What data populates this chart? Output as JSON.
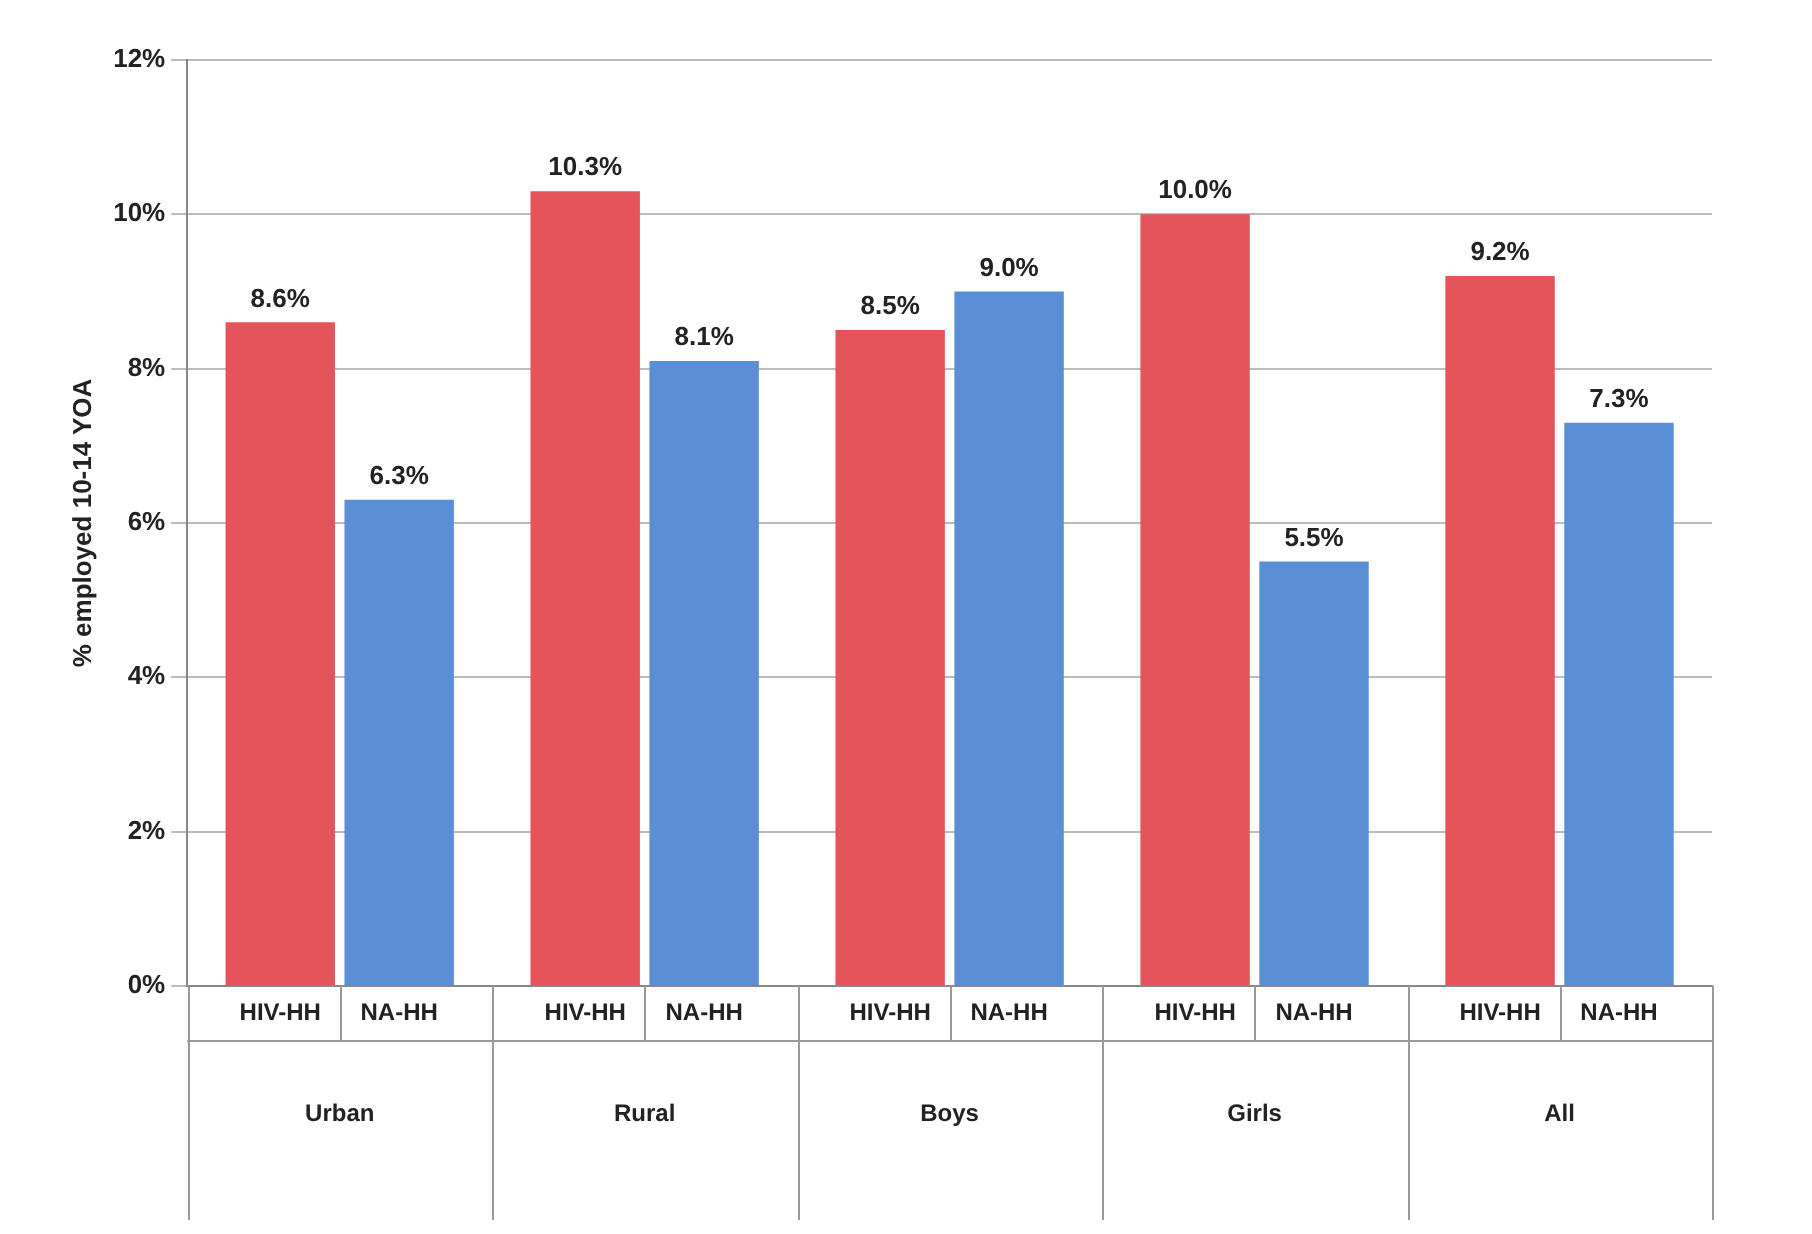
{
  "chart_data": {
    "type": "bar",
    "ylabel": "% employed 10-14 YOA",
    "categories": [
      "Urban",
      "Rural",
      "Boys",
      "Girls",
      "All"
    ],
    "series": [
      {
        "name": "HIV-HH",
        "color": "#e4545a",
        "values": [
          8.6,
          10.3,
          8.5,
          10.0,
          9.2
        ],
        "value_labels": [
          "8.6%",
          "10.3%",
          "8.5%",
          "10.0%",
          "9.2%"
        ]
      },
      {
        "name": "NA-HH",
        "color": "#5a8fd6",
        "values": [
          6.3,
          8.1,
          9.0,
          5.5,
          7.3
        ],
        "value_labels": [
          "6.3%",
          "8.1%",
          "9.0%",
          "5.5%",
          "7.3%"
        ]
      }
    ],
    "ylim": [
      0,
      12
    ],
    "yticks": [
      {
        "value": 0,
        "label": "0%"
      },
      {
        "value": 2,
        "label": "2%"
      },
      {
        "value": 4,
        "label": "4%"
      },
      {
        "value": 6,
        "label": "6%"
      },
      {
        "value": 8,
        "label": "8%"
      },
      {
        "value": 10,
        "label": "10%"
      },
      {
        "value": 12,
        "label": "12%"
      }
    ],
    "grid": "y",
    "legend": false
  }
}
